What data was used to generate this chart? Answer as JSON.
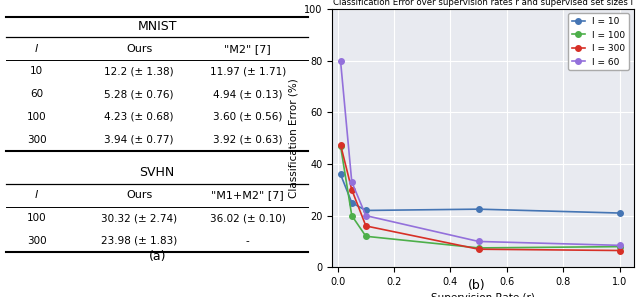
{
  "title": "Classification Error over supervision rates r and supervised set sizes l",
  "xlabel": "Supervision Rate (r)",
  "ylabel": "Classification Error (%)",
  "ylim": [
    0,
    100
  ],
  "xlim": [
    -0.02,
    1.05
  ],
  "xticks": [
    0.0,
    0.2,
    0.4,
    0.6,
    0.8,
    1.0
  ],
  "yticks": [
    0,
    20,
    40,
    60,
    80,
    100
  ],
  "background_color": "#e8eaf0",
  "series": [
    {
      "label": "l = 10",
      "color": "#4575b4",
      "x": [
        0.01,
        0.05,
        0.1,
        0.5,
        1.0
      ],
      "y": [
        36.0,
        25.0,
        22.0,
        22.5,
        21.0
      ]
    },
    {
      "label": "l = 100",
      "color": "#4daf4a",
      "x": [
        0.01,
        0.05,
        0.1,
        0.5,
        1.0
      ],
      "y": [
        47.0,
        20.0,
        12.0,
        7.5,
        8.0
      ]
    },
    {
      "label": "l = 300",
      "color": "#d73027",
      "x": [
        0.01,
        0.05,
        0.1,
        0.5,
        1.0
      ],
      "y": [
        47.5,
        30.0,
        16.0,
        7.0,
        6.5
      ]
    },
    {
      "label": "l = 60",
      "color": "#9370db",
      "x": [
        0.01,
        0.05,
        0.1,
        0.5,
        1.0
      ],
      "y": [
        80.0,
        33.0,
        20.0,
        10.0,
        8.5
      ]
    }
  ],
  "table": {
    "mnist_title": "MNIST",
    "svhn_title": "SVHN",
    "mnist_headers": [
      "l",
      "Ours",
      "\"M2\" [7]"
    ],
    "svhn_headers": [
      "l",
      "Ours",
      "\"M1+M2\" [7]"
    ],
    "mnist_rows": [
      [
        "10",
        "12.2 (± 1.38)",
        "11.97 (± 1.71)"
      ],
      [
        "60",
        "5.28 (± 0.76)",
        "4.94 (± 0.13)"
      ],
      [
        "100",
        "4.23 (± 0.68)",
        "3.60 (± 0.56)"
      ],
      [
        "300",
        "3.94 (± 0.77)",
        "3.92 (± 0.63)"
      ]
    ],
    "svhn_rows": [
      [
        "100",
        "30.32 (± 2.74)",
        "36.02 (± 0.10)"
      ],
      [
        "300",
        "23.98 (± 1.83)",
        "-"
      ]
    ]
  },
  "caption_a": "(a)",
  "caption_b": "(b)"
}
